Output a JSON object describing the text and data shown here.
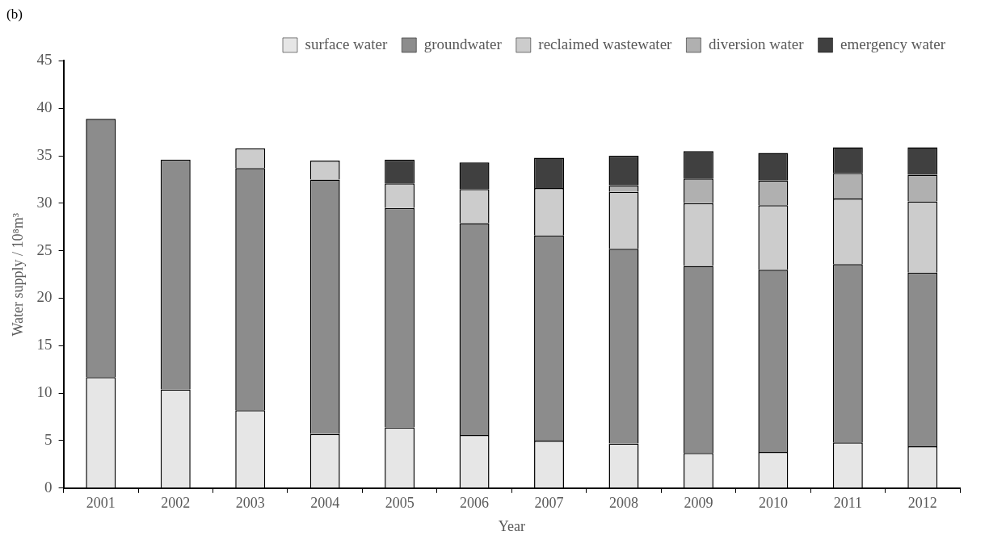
{
  "chart_data": {
    "type": "bar",
    "title": "(b)",
    "xlabel": "Year",
    "ylabel": "Water supply / 10⁸m³",
    "categories": [
      "2001",
      "2002",
      "2003",
      "2004",
      "2005",
      "2006",
      "2007",
      "2008",
      "2009",
      "2010",
      "2011",
      "2012"
    ],
    "series": [
      {
        "name": "surface water",
        "color": "#e6e6e6",
        "values": [
          11.7,
          10.4,
          8.2,
          5.7,
          6.4,
          5.6,
          5.0,
          4.7,
          3.7,
          3.8,
          4.8,
          4.4
        ]
      },
      {
        "name": "groundwater",
        "color": "#8c8c8c",
        "values": [
          27.2,
          24.2,
          25.5,
          26.8,
          23.1,
          22.3,
          21.6,
          20.5,
          19.7,
          19.2,
          18.8,
          18.3
        ]
      },
      {
        "name": "reclaimed wastewater",
        "color": "#cccccc",
        "values": [
          0,
          0,
          2.1,
          2.0,
          2.6,
          3.6,
          5.0,
          6.0,
          6.6,
          6.8,
          6.9,
          7.5
        ]
      },
      {
        "name": "diversion water",
        "color": "#b0b0b0",
        "values": [
          0,
          0,
          0,
          0,
          0,
          0,
          0,
          0.7,
          2.6,
          2.6,
          2.7,
          2.8
        ]
      },
      {
        "name": "emergency water",
        "color": "#404040",
        "values": [
          0,
          0,
          0,
          0,
          2.5,
          2.8,
          3.2,
          3.1,
          2.9,
          2.9,
          2.7,
          2.9
        ]
      }
    ],
    "stacked": true,
    "ylim": [
      0,
      45
    ],
    "yticks": [
      0,
      5,
      10,
      15,
      20,
      25,
      30,
      35,
      40,
      45
    ],
    "grid": false,
    "legend": "top"
  }
}
